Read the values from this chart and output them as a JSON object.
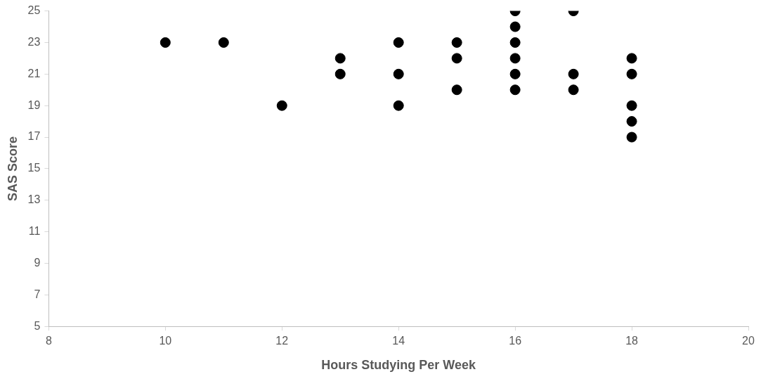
{
  "chart_data": {
    "type": "scatter",
    "xlabel": "Hours Studying Per Week",
    "ylabel": "SAS Score",
    "x": [
      10,
      11,
      12,
      13,
      13,
      14,
      14,
      14,
      15,
      15,
      15,
      16,
      16,
      16,
      16,
      16,
      16,
      17,
      17,
      17,
      18,
      18,
      18,
      18,
      18
    ],
    "series": [
      {
        "color": "#000000",
        "values": [
          23,
          23,
          19,
          22,
          21,
          23,
          21,
          19,
          23,
          22,
          20,
          25,
          24,
          23,
          22,
          21,
          20,
          25,
          21,
          20,
          22,
          21,
          19,
          18,
          17
        ]
      }
    ],
    "xlim": [
      8,
      20
    ],
    "xticks": [
      8,
      10,
      12,
      14,
      16,
      18,
      20
    ],
    "ylim": [
      5,
      25
    ],
    "yticks": [
      5,
      7,
      9,
      11,
      13,
      15,
      17,
      19,
      21,
      23,
      25
    ],
    "marker": "circle"
  }
}
